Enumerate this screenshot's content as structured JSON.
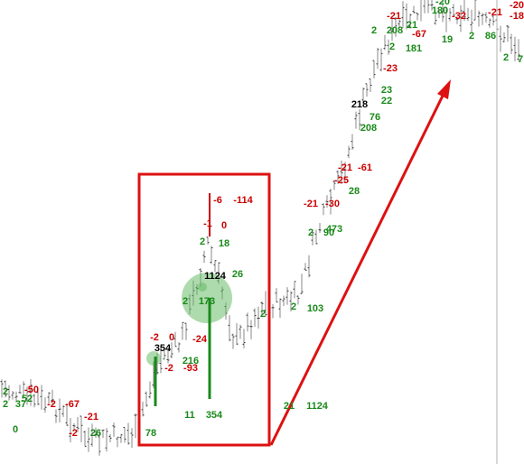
{
  "chart_data": {
    "type": "price-annotations",
    "labels": [
      {
        "text": "-21",
        "color": "#cc0000"
      },
      {
        "text": "180",
        "color": "#1a8a1a"
      },
      {
        "text": "-20",
        "color": "#1a8a1a"
      },
      {
        "text": "-32",
        "color": "#cc0000"
      },
      {
        "text": "-18",
        "color": "#cc0000"
      },
      {
        "text": "-20",
        "color": "#cc0000"
      },
      {
        "text": "-21",
        "color": "#cc0000"
      },
      {
        "text": "2",
        "color": "#1a8a1a"
      },
      {
        "text": "208",
        "color": "#1a8a1a"
      },
      {
        "text": "-67",
        "color": "#cc0000"
      },
      {
        "text": "21",
        "color": "#1a8a1a"
      },
      {
        "text": "19",
        "color": "#1a8a1a"
      },
      {
        "text": "2",
        "color": "#1a8a1a"
      },
      {
        "text": "86",
        "color": "#1a8a1a"
      },
      {
        "text": "2",
        "color": "#1a8a1a"
      },
      {
        "text": "7",
        "color": "#1a8a1a"
      },
      {
        "text": "181",
        "color": "#1a8a1a"
      },
      {
        "text": "2",
        "color": "#1a8a1a"
      },
      {
        "text": "-23",
        "color": "#cc0000"
      },
      {
        "text": "23",
        "color": "#1a8a1a"
      },
      {
        "text": "22",
        "color": "#1a8a1a"
      },
      {
        "text": "218",
        "color": "#000000"
      },
      {
        "text": "76",
        "color": "#1a8a1a"
      },
      {
        "text": "208",
        "color": "#1a8a1a"
      },
      {
        "text": "-21",
        "color": "#cc0000"
      },
      {
        "text": "-61",
        "color": "#cc0000"
      },
      {
        "text": "-25",
        "color": "#cc0000"
      },
      {
        "text": "28",
        "color": "#1a8a1a"
      },
      {
        "text": "-30",
        "color": "#cc0000"
      },
      {
        "text": "-21",
        "color": "#cc0000"
      },
      {
        "text": "473",
        "color": "#1a8a1a"
      },
      {
        "text": "90",
        "color": "#1a8a1a"
      },
      {
        "text": "2",
        "color": "#1a8a1a"
      },
      {
        "text": "103",
        "color": "#1a8a1a"
      },
      {
        "text": "2",
        "color": "#1a8a1a"
      },
      {
        "text": "2",
        "color": "#1a8a1a"
      },
      {
        "text": "1124",
        "color": "#1a8a1a"
      },
      {
        "text": "21",
        "color": "#1a8a1a"
      },
      {
        "text": "-6",
        "color": "#cc0000"
      },
      {
        "text": "-114",
        "color": "#cc0000"
      },
      {
        "text": "-1",
        "color": "#cc0000"
      },
      {
        "text": "0",
        "color": "#cc0000"
      },
      {
        "text": "2",
        "color": "#1a8a1a"
      },
      {
        "text": "18",
        "color": "#1a8a1a"
      },
      {
        "text": "1124",
        "color": "#000000"
      },
      {
        "text": "26",
        "color": "#1a8a1a"
      },
      {
        "text": "2",
        "color": "#1a8a1a"
      },
      {
        "text": "173",
        "color": "#1a8a1a"
      },
      {
        "text": "-2",
        "color": "#cc0000"
      },
      {
        "text": "0",
        "color": "#cc0000"
      },
      {
        "text": "-24",
        "color": "#cc0000"
      },
      {
        "text": "354",
        "color": "#000000"
      },
      {
        "text": "-2",
        "color": "#cc0000"
      },
      {
        "text": "-93",
        "color": "#cc0000"
      },
      {
        "text": "216",
        "color": "#1a8a1a"
      },
      {
        "text": "11",
        "color": "#1a8a1a"
      },
      {
        "text": "354",
        "color": "#1a8a1a"
      },
      {
        "text": "78",
        "color": "#1a8a1a"
      },
      {
        "text": "-50",
        "color": "#cc0000"
      },
      {
        "text": "52",
        "color": "#1a8a1a"
      },
      {
        "text": "37",
        "color": "#1a8a1a"
      },
      {
        "text": "2",
        "color": "#1a8a1a"
      },
      {
        "text": "0",
        "color": "#1a8a1a"
      },
      {
        "text": "-2",
        "color": "#cc0000"
      },
      {
        "text": "-67",
        "color": "#cc0000"
      },
      {
        "text": "-21",
        "color": "#cc0000"
      },
      {
        "text": "-2",
        "color": "#cc0000"
      },
      {
        "text": "26",
        "color": "#1a8a1a"
      },
      {
        "text": "2",
        "color": "#1a8a1a"
      }
    ]
  }
}
